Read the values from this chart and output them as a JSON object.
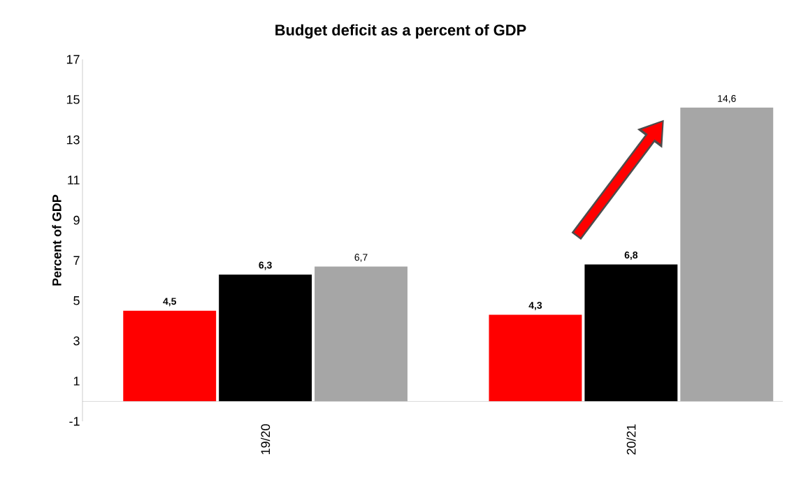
{
  "chart_data": {
    "type": "bar",
    "title": "Budget deficit as a percent of GDP",
    "ylabel": "Percent of GDP",
    "categories": [
      "19/20",
      "20/21"
    ],
    "series": [
      {
        "color": "#ff0000",
        "values": [
          4.5,
          4.3
        ],
        "value_labels": [
          "4,5",
          "4,3"
        ]
      },
      {
        "color": "#000000",
        "values": [
          6.3,
          6.8
        ],
        "value_labels": [
          "6,3",
          "6,8"
        ]
      },
      {
        "color": "#a6a6a6",
        "values": [
          6.7,
          14.6
        ],
        "value_labels": [
          "6,7",
          "14,6"
        ]
      }
    ],
    "ylim": [
      -1,
      17
    ],
    "yticks": [
      -1,
      1,
      3,
      5,
      7,
      9,
      11,
      13,
      15,
      17
    ]
  }
}
